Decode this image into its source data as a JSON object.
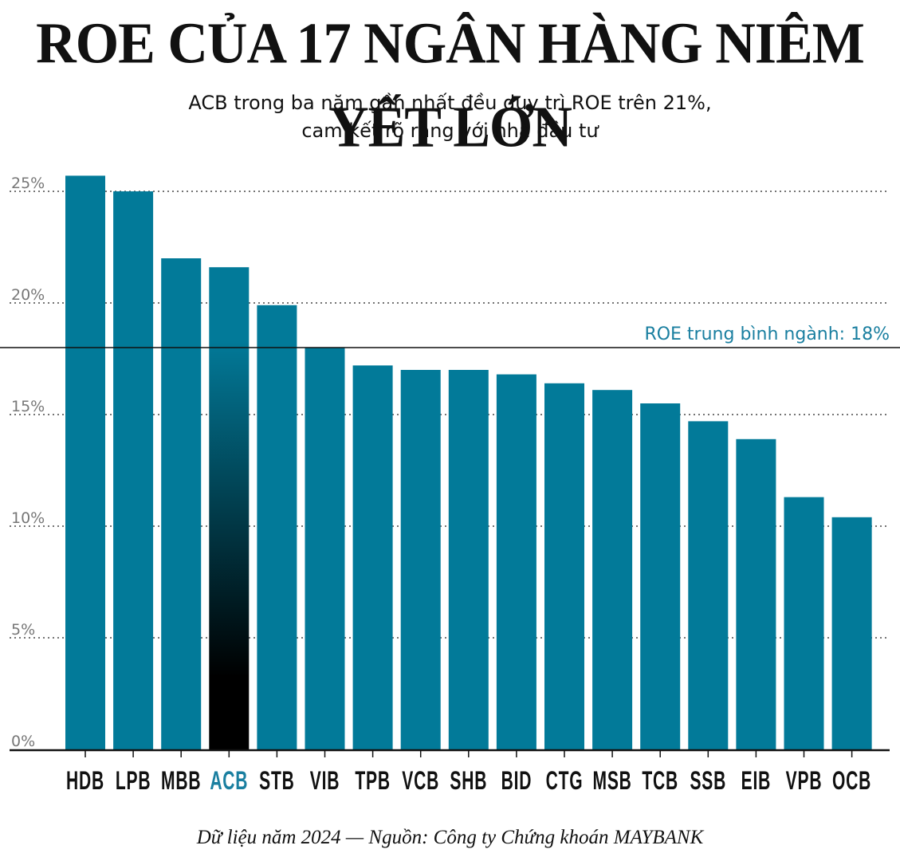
{
  "header": {
    "title": "ROE CỦA 17 NGÂN HÀNG NIÊM YẾT LỚN",
    "subtitle_line1": "ACB trong ba năm gần nhất đều duy trì ROE trên 21%,",
    "subtitle_line2": "cam kết rõ ràng với nhà đầu tư"
  },
  "footer": {
    "source": "Dữ liệu năm 2024 — Nguồn: Công ty Chứng khoán MAYBANK"
  },
  "chart_data": {
    "type": "bar",
    "categories": [
      "HDB",
      "LPB",
      "MBB",
      "ACB",
      "STB",
      "VIB",
      "TPB",
      "VCB",
      "SHB",
      "BID",
      "CTG",
      "MSB",
      "TCB",
      "SSB",
      "EIB",
      "VPB",
      "OCB"
    ],
    "values": [
      25.7,
      25.0,
      22.0,
      21.6,
      19.9,
      18.0,
      17.2,
      17.0,
      17.0,
      16.8,
      16.4,
      16.1,
      15.5,
      14.7,
      13.9,
      11.3,
      10.4
    ],
    "highlight": "ACB",
    "ylim": [
      0,
      26
    ],
    "yticks": [
      0,
      5,
      10,
      15,
      20,
      25
    ],
    "ytick_labels": [
      "0%",
      "5%",
      "10%",
      "15%",
      "20%",
      "25%"
    ],
    "grid": "dotted-horizontal",
    "reference_line": {
      "value": 18,
      "label": "ROE trung bình ngành: 18%"
    },
    "colors": {
      "bar": "#027a99",
      "highlight_top": "#027a99",
      "highlight_bottom": "#000000",
      "highlight_label": "#1a7fa0",
      "reference_label": "#1a7fa0",
      "axis": "#111111",
      "tick_label": "#777777"
    }
  }
}
